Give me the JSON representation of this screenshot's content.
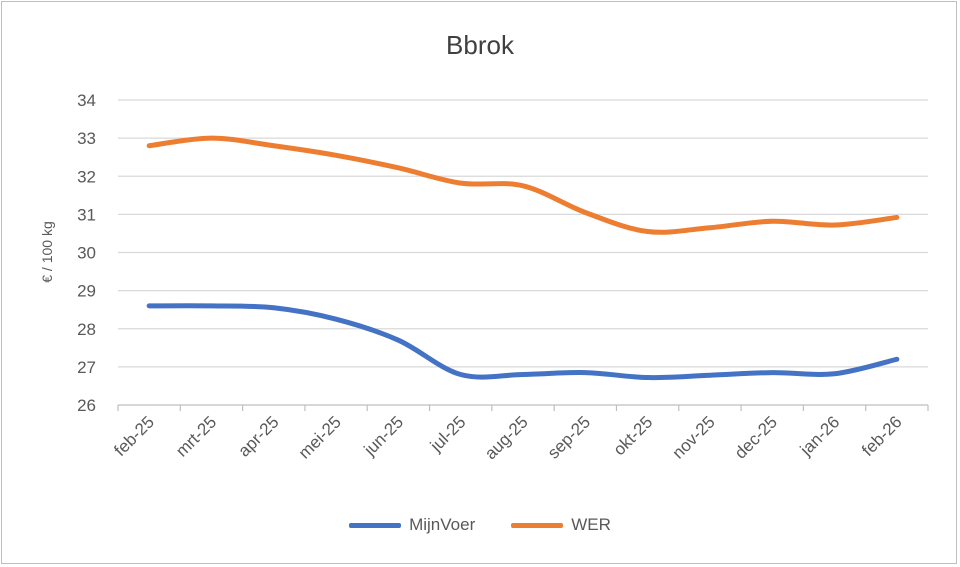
{
  "chart_data": {
    "type": "line",
    "title": "Bbrok",
    "xlabel": "",
    "ylabel": "€ / 100 kg",
    "ylim": [
      26,
      34
    ],
    "yticks": [
      26,
      27,
      28,
      29,
      30,
      31,
      32,
      33,
      34
    ],
    "grid": true,
    "legend_position": "bottom",
    "categories": [
      "feb-25",
      "mrt-25",
      "apr-25",
      "mei-25",
      "jun-25",
      "jul-25",
      "aug-25",
      "sep-25",
      "okt-25",
      "nov-25",
      "dec-25",
      "jan-26",
      "feb-26"
    ],
    "series": [
      {
        "name": "MijnVoer",
        "color": "#4472c4",
        "values": [
          28.6,
          28.6,
          28.55,
          28.25,
          27.7,
          26.8,
          26.8,
          26.85,
          26.72,
          26.78,
          26.85,
          26.82,
          27.2
        ]
      },
      {
        "name": "WER",
        "color": "#ed7d31",
        "values": [
          32.8,
          33.0,
          32.8,
          32.55,
          32.22,
          31.82,
          31.75,
          31.05,
          30.55,
          30.65,
          30.82,
          30.72,
          30.92
        ]
      }
    ]
  }
}
